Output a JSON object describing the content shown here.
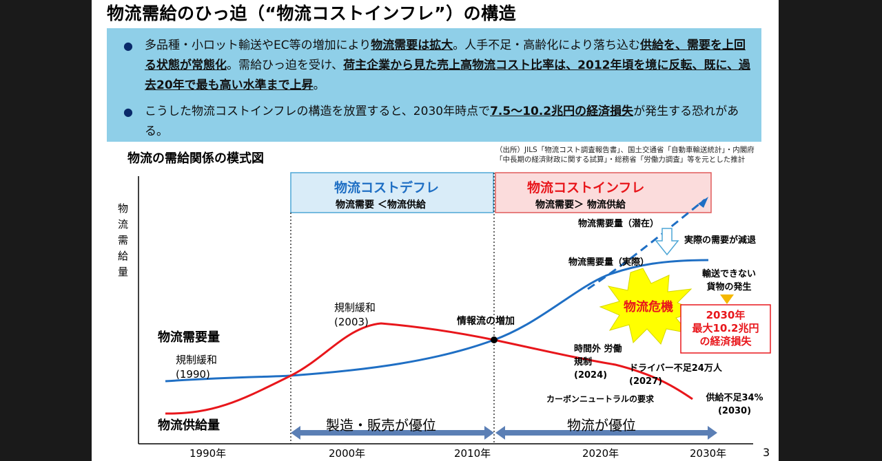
{
  "title": "物流需給のひっ迫（“物流コストインフレ”）の構造",
  "bullets": [
    {
      "p1": "多品種・小ロット輸送やEC等の増加により",
      "b1": "物流需要は拡大",
      "p2": "。人手不足・高齢化により落ち込む",
      "b2": "供給を、需要を上回る状態が常態化",
      "p3": "。需給ひっ迫を受け、",
      "b3": "荷主企業から見た売上高物流コスト比率は、2012年頃を境に反転、既に、過去20年で最も高い水準まで上昇",
      "p4": "。"
    },
    {
      "p1": "こうした物流コストインフレの構造を放置すると、2030年時点で",
      "b1": "7.5～10.2兆円の経済損失",
      "p2": "が発生する恐れがある。"
    }
  ],
  "chart_title": "物流の需給関係の模式図",
  "source_line1": "（出所）JILS「物流コスト調査報告書」、国土交通省「自動車輸送統計」・内閣府",
  "source_line2": "「中長期の経済財政に関する試算」・総務省「労働力調査」等を元とした推計",
  "y_axis_label": "物流需給量",
  "x_ticks": [
    "1990年",
    "2000年",
    "2010年",
    "2020年",
    "2030年"
  ],
  "deflation_box": {
    "title": "物流コストデフレ",
    "sub": "物流需要 ＜物流供給"
  },
  "inflation_box": {
    "title": "物流コストインフレ",
    "sub": "物流需要＞ 物流供給"
  },
  "labels": {
    "demand_latent": "物流需要量（潜在）",
    "actual_decline": "実際の需要が減退",
    "demand_actual": "物流需要量（実際）",
    "undeliverable": "輸送できない 貨物の発生",
    "crisis": "物流危機",
    "loss_line1": "2030年",
    "loss_line2": "最大10.2兆円",
    "loss_line3": "の経済損失",
    "dereg_2003": "規制緩和 (2003)",
    "info_flow": "情報流の増加",
    "demand_series": "物流需要量",
    "dereg_1990": "規制緩和 (1990)",
    "overtime": "時間外 労働規制 (2024)",
    "driver_shortage": "ドライバー不足24万人 (2027)",
    "carbon": "カーボンニュートラルの要求",
    "supply_shortage": "供給不足34% (2030)",
    "supply_series": "物流供給量",
    "mfg_dominant": "製造・販売が優位",
    "logistics_dominant": "物流が優位"
  },
  "colors": {
    "demand": "#1f6fc4",
    "supply": "#e8161b",
    "arrow": "#5b7fb5",
    "crisis_fill": "#ffff00",
    "loss": "#e8161b"
  },
  "page_number": "3"
}
